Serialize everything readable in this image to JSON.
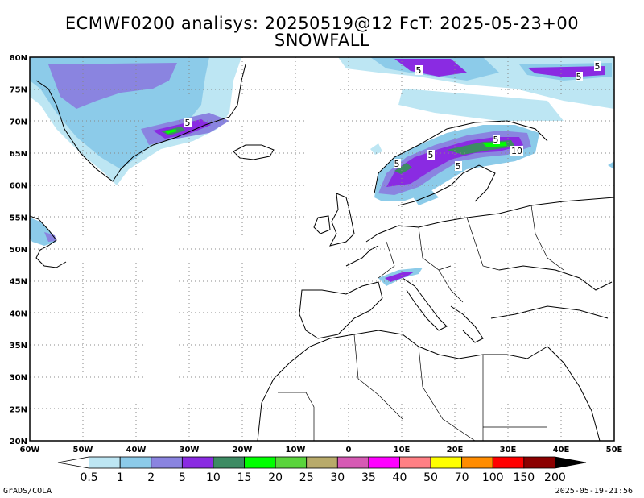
{
  "header": {
    "title": "ECMWF0200 analisys: 20250519@12 FcT: 2025-05-23+00",
    "subtitle": "SNOWFALL"
  },
  "axes": {
    "lon_ticks": [
      "60W",
      "50W",
      "40W",
      "30W",
      "20W",
      "10W",
      "0",
      "10E",
      "20E",
      "30E",
      "40E",
      "50E"
    ],
    "lat_ticks": [
      "80N",
      "75N",
      "70N",
      "65N",
      "60N",
      "55N",
      "50N",
      "45N",
      "40N",
      "35N",
      "30N",
      "25N",
      "20N"
    ],
    "lon_range": [
      -60,
      50
    ],
    "lat_range": [
      20,
      80
    ],
    "grid": true
  },
  "contour_labels": [
    "5",
    "5",
    "5",
    "5",
    "5",
    "5",
    "5",
    "5",
    "10"
  ],
  "colorbar": {
    "levels": [
      "0.5",
      "1",
      "2",
      "5",
      "10",
      "15",
      "20",
      "25",
      "30",
      "35",
      "40",
      "50",
      "70",
      "100",
      "150",
      "200"
    ],
    "colors": [
      "#ffffff",
      "#bde6f3",
      "#8ccbe9",
      "#8a84e0",
      "#8a2be2",
      "#3d8b63",
      "#00ff00",
      "#5ad43c",
      "#b8aa6a",
      "#d65ab4",
      "#ff00ff",
      "#ff7f84",
      "#ffff00",
      "#ff8c00",
      "#ff0000",
      "#8b0000",
      "#000000"
    ]
  },
  "footer": {
    "left": "GrADS/COLA",
    "right": "2025-05-19-21:56"
  }
}
